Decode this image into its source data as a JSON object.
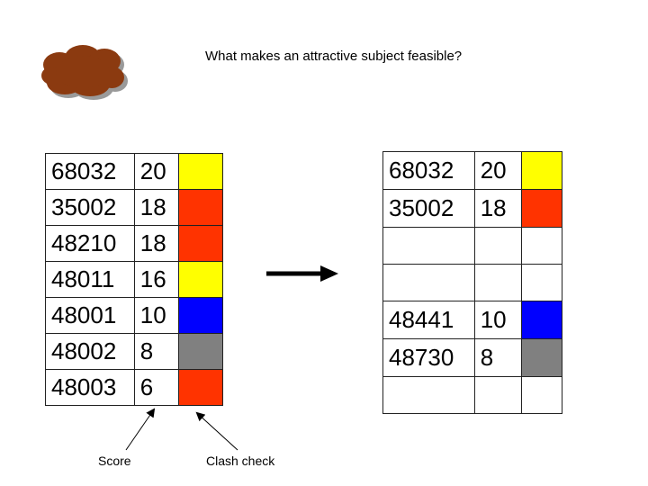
{
  "title": "What makes an attractive subject feasible?",
  "colors": {
    "yellow": "#ffff00",
    "red": "#ff3300",
    "blue": "#0000ff",
    "grey": "#808080",
    "white": "#ffffff",
    "cloud": "#8b3a10"
  },
  "left_table": {
    "rows": [
      {
        "id": "68032",
        "score": "20",
        "color": "yellow"
      },
      {
        "id": "35002",
        "score": "18",
        "color": "red"
      },
      {
        "id": "48210",
        "score": "18",
        "color": "red"
      },
      {
        "id": "48011",
        "score": "16",
        "color": "yellow"
      },
      {
        "id": "48001",
        "score": "10",
        "color": "blue"
      },
      {
        "id": "48002",
        "score": "8",
        "color": "grey"
      },
      {
        "id": "48003",
        "score": "6",
        "color": "red"
      }
    ]
  },
  "right_table": {
    "rows": [
      {
        "id": "68032",
        "score": "20",
        "color": "yellow"
      },
      {
        "id": "35002",
        "score": "18",
        "color": "red"
      },
      {
        "id": "",
        "score": "",
        "color": "white"
      },
      {
        "id": "",
        "score": "",
        "color": "white"
      },
      {
        "id": "48441",
        "score": "10",
        "color": "blue"
      },
      {
        "id": "48730",
        "score": "8",
        "color": "grey"
      },
      {
        "id": "",
        "score": "",
        "color": "white"
      }
    ]
  },
  "labels": {
    "score": "Score",
    "clash_check": "Clash check"
  }
}
